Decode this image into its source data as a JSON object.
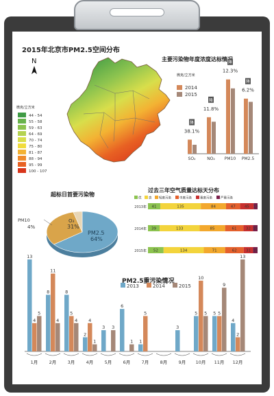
{
  "map": {
    "title": "2015年北京市PM2.5空间分布",
    "north": "N",
    "legend_unit": "微克/立方米",
    "legend": [
      {
        "label": "44 - 54",
        "color": "#3f9b45"
      },
      {
        "label": "55 - 58",
        "color": "#68b34c"
      },
      {
        "label": "59 - 63",
        "color": "#8cc34f"
      },
      {
        "label": "64 - 69",
        "color": "#b4d251"
      },
      {
        "label": "70 - 74",
        "color": "#d8de4b"
      },
      {
        "label": "75 - 80",
        "color": "#f1dc3c"
      },
      {
        "label": "81 - 87",
        "color": "#f3b233"
      },
      {
        "label": "88 - 94",
        "color": "#ef8a2b"
      },
      {
        "label": "95 - 99",
        "color": "#e86123"
      },
      {
        "label": "100 - 107",
        "color": "#d8351b"
      }
    ]
  },
  "colors": {
    "y2014": "#d4885a",
    "y2015": "#a58878",
    "y2013": "#6fa8c8"
  },
  "chart_data": [
    {
      "type": "bar",
      "title": "主要污染物年度浓度达标情况",
      "ylabel": "微克/立方米",
      "categories": [
        "SO₂",
        "NO₂",
        "PM10",
        "PM2.5"
      ],
      "series": [
        {
          "name": "2014",
          "values": [
            22,
            57,
            116,
            86
          ]
        },
        {
          "name": "2015",
          "values": [
            14,
            50,
            102,
            81
          ]
        }
      ],
      "annotations": [
        "38.1%",
        "11.8%",
        "12.3%",
        "6.2%"
      ],
      "badges": [
        "降",
        "降",
        "降",
        "降"
      ]
    },
    {
      "type": "pie",
      "title": "超标日首要污染物",
      "slices": [
        {
          "label": "PM2.5",
          "value": 64,
          "text": "64%",
          "color": "#6fa8c8"
        },
        {
          "label": "O₃",
          "value": 31,
          "text": "31%",
          "color": "#d9a44a"
        },
        {
          "label": "PM10",
          "value": 4,
          "text": "4%",
          "color": "#e8d6b5"
        }
      ]
    },
    {
      "type": "bar",
      "title": "过去三年空气质量达标天分布",
      "legend": [
        {
          "label": "优",
          "color": "#8cc34f"
        },
        {
          "label": "良",
          "color": "#f3d43c"
        },
        {
          "label": "轻度污染",
          "color": "#f3a82d"
        },
        {
          "label": "中度污染",
          "color": "#e5602c"
        },
        {
          "label": "重度污染",
          "color": "#c8302f"
        },
        {
          "label": "严重污染",
          "color": "#7a1e4a"
        }
      ],
      "rows": [
        {
          "label": "2013年",
          "values": [
            41,
            135,
            84,
            47,
            45,
            13
          ]
        },
        {
          "label": "2014年",
          "values": [
            39,
            133,
            85,
            61,
            32,
            15
          ]
        },
        {
          "label": "2015年",
          "values": [
            52,
            134,
            71,
            62,
            31,
            15
          ]
        }
      ]
    },
    {
      "type": "bar",
      "title": "PM2.5重污染情况",
      "categories": [
        "1月",
        "2月",
        "3月",
        "4月",
        "5月",
        "6月",
        "7月",
        "8月",
        "9月",
        "10月",
        "11月",
        "12月"
      ],
      "series": [
        {
          "name": "2013",
          "values": [
            13,
            8,
            8,
            2,
            3,
            6,
            1,
            0,
            3,
            5,
            5,
            4
          ]
        },
        {
          "name": "2014",
          "values": [
            4,
            11,
            5,
            4,
            0,
            0,
            5,
            0,
            0,
            10,
            5,
            2
          ]
        },
        {
          "name": "2015",
          "values": [
            5,
            4,
            4,
            1,
            3,
            1,
            0,
            0,
            0,
            5,
            9,
            13
          ]
        }
      ],
      "ylim": [
        0,
        13
      ]
    }
  ]
}
